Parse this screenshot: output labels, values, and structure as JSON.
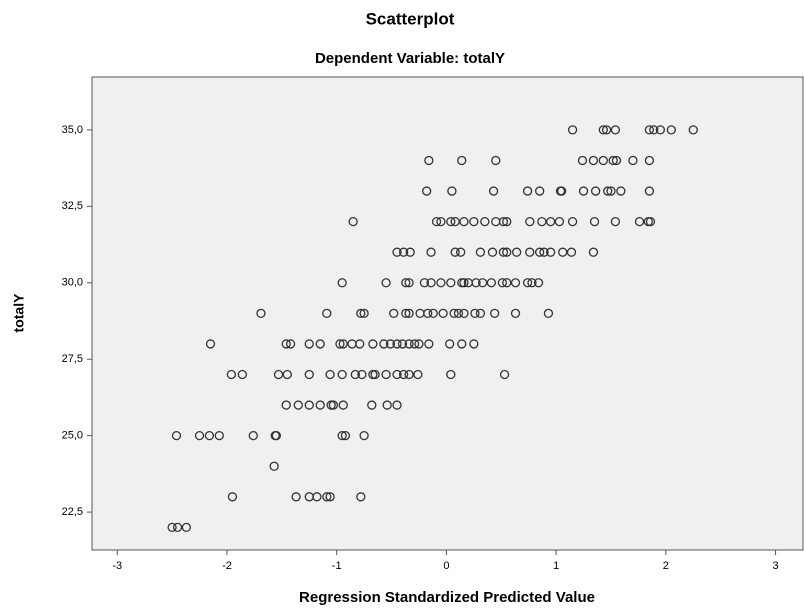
{
  "chart_data": {
    "type": "scatter",
    "title": "Scatterplot",
    "subtitle": "Dependent Variable: totalY",
    "x_label": "Regression Standardized Predicted Value",
    "y_label": "totalY",
    "xlim": [
      -3.23,
      3.25
    ],
    "ylim": [
      21.26,
      36.73
    ],
    "xticks": [
      -3,
      -2,
      -1,
      0,
      1,
      2,
      3
    ],
    "yticks": [
      {
        "value": 22.5,
        "label": "22,5"
      },
      {
        "value": 25,
        "label": "25,0"
      },
      {
        "value": 27.5,
        "label": "27,5"
      },
      {
        "value": 30,
        "label": "30,0"
      },
      {
        "value": 32.5,
        "label": "32,5"
      },
      {
        "value": 35,
        "label": "35,0"
      }
    ],
    "marker_color": "#333333",
    "background": "#f0f0f0",
    "x": [
      1.15,
      1.43,
      1.46,
      1.54,
      1.85,
      1.89,
      1.95,
      2.05,
      2.25,
      -0.16,
      0.14,
      0.45,
      1.24,
      1.34,
      1.43,
      1.52,
      1.55,
      1.7,
      1.85,
      -0.18,
      0.05,
      0.43,
      0.74,
      0.85,
      1.04,
      1.05,
      1.25,
      1.36,
      1.47,
      1.5,
      1.59,
      1.85,
      -0.85,
      -0.09,
      -0.05,
      0.04,
      0.08,
      0.16,
      0.25,
      0.35,
      0.45,
      0.52,
      0.55,
      0.76,
      0.87,
      0.95,
      1.03,
      1.15,
      1.35,
      1.54,
      1.76,
      1.84,
      1.86,
      -0.45,
      -0.39,
      -0.33,
      -0.14,
      0.08,
      0.13,
      0.31,
      0.42,
      0.52,
      0.55,
      0.64,
      0.76,
      0.85,
      0.89,
      0.95,
      1.06,
      1.14,
      1.34,
      -0.95,
      -0.55,
      -0.37,
      -0.34,
      -0.2,
      -0.14,
      -0.05,
      0.04,
      0.14,
      0.16,
      0.2,
      0.27,
      0.33,
      0.41,
      0.51,
      0.55,
      0.63,
      0.74,
      0.78,
      0.84,
      -1.69,
      -1.09,
      -0.78,
      -0.75,
      -0.48,
      -0.37,
      -0.34,
      -0.24,
      -0.17,
      -0.12,
      -0.03,
      0.07,
      0.11,
      0.16,
      0.26,
      0.31,
      0.44,
      0.63,
      0.93,
      -2.15,
      -1.46,
      -1.42,
      -1.25,
      -1.15,
      -0.97,
      -0.94,
      -0.86,
      -0.79,
      -0.67,
      -0.57,
      -0.51,
      -0.45,
      -0.4,
      -0.34,
      -0.29,
      -0.25,
      -0.16,
      0.03,
      0.14,
      0.25,
      -1.96,
      -1.86,
      -1.53,
      -1.45,
      -1.25,
      -1.06,
      -0.95,
      -0.83,
      -0.77,
      -0.67,
      -0.65,
      -0.55,
      -0.45,
      -0.39,
      -0.34,
      -0.26,
      0.04,
      0.53,
      -1.46,
      -1.35,
      -1.25,
      -1.15,
      -1.05,
      -1.03,
      -0.94,
      -0.68,
      -0.54,
      -0.45,
      -2.46,
      -2.25,
      -2.16,
      -2.07,
      -1.76,
      -1.56,
      -1.55,
      -0.95,
      -0.92,
      -0.75,
      -1.57,
      -1.95,
      -1.37,
      -1.25,
      -1.18,
      -1.09,
      -1.06,
      -0.78,
      -2.5,
      -2.45,
      -2.37
    ],
    "values": [
      35,
      35,
      35,
      35,
      35,
      35,
      35,
      35,
      35,
      34,
      34,
      34,
      34,
      34,
      34,
      34,
      34,
      34,
      34,
      33,
      33,
      33,
      33,
      33,
      33,
      33,
      33,
      33,
      33,
      33,
      33,
      33,
      32,
      32,
      32,
      32,
      32,
      32,
      32,
      32,
      32,
      32,
      32,
      32,
      32,
      32,
      32,
      32,
      32,
      32,
      32,
      32,
      32,
      31,
      31,
      31,
      31,
      31,
      31,
      31,
      31,
      31,
      31,
      31,
      31,
      31,
      31,
      31,
      31,
      31,
      31,
      30,
      30,
      30,
      30,
      30,
      30,
      30,
      30,
      30,
      30,
      30,
      30,
      30,
      30,
      30,
      30,
      30,
      30,
      30,
      30,
      29,
      29,
      29,
      29,
      29,
      29,
      29,
      29,
      29,
      29,
      29,
      29,
      29,
      29,
      29,
      29,
      29,
      29,
      29,
      28,
      28,
      28,
      28,
      28,
      28,
      28,
      28,
      28,
      28,
      28,
      28,
      28,
      28,
      28,
      28,
      28,
      28,
      28,
      28,
      28,
      27,
      27,
      27,
      27,
      27,
      27,
      27,
      27,
      27,
      27,
      27,
      27,
      27,
      27,
      27,
      27,
      27,
      27,
      26,
      26,
      26,
      26,
      26,
      26,
      26,
      26,
      26,
      26,
      25,
      25,
      25,
      25,
      25,
      25,
      25,
      25,
      25,
      25,
      24,
      23,
      23,
      23,
      23,
      23,
      23,
      23,
      22,
      22,
      22
    ]
  }
}
